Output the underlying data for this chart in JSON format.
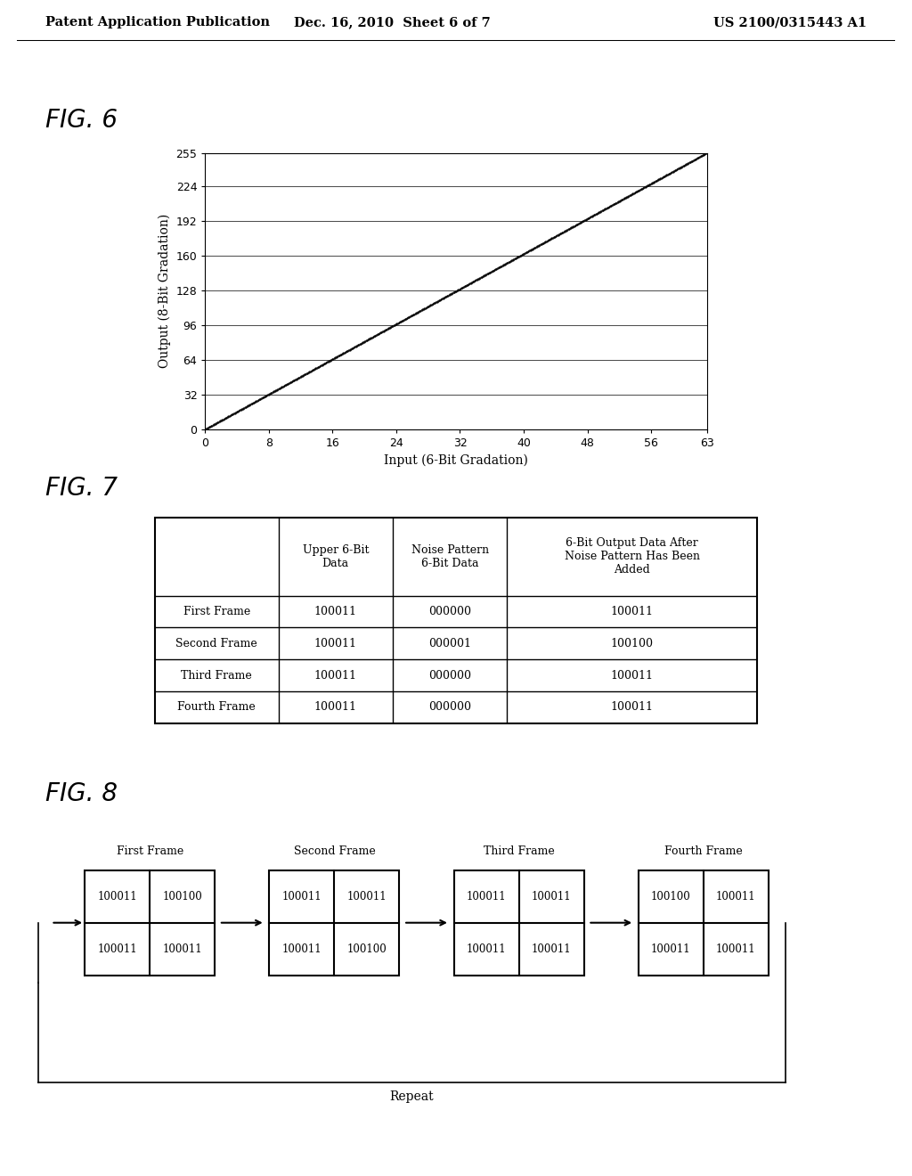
{
  "header_left": "Patent Application Publication",
  "header_middle": "Dec. 16, 2010  Sheet 6 of 7",
  "header_right": "US 2100/0315443 A1",
  "fig6_title": "FIG. 6",
  "fig6_xlabel": "Input (6-Bit Gradation)",
  "fig6_ylabel": "Output (8-Bit Gradation)",
  "fig6_xticks": [
    0,
    8,
    16,
    24,
    32,
    40,
    48,
    56,
    63
  ],
  "fig6_yticks": [
    0,
    32,
    64,
    96,
    128,
    160,
    192,
    224,
    255
  ],
  "fig6_xlim": [
    0,
    63
  ],
  "fig6_ylim": [
    0,
    255
  ],
  "fig7_title": "FIG. 7",
  "fig7_col_headers": [
    "",
    "Upper 6-Bit\nData",
    "Noise Pattern\n6-Bit Data",
    "6-Bit Output Data After\nNoise Pattern Has Been\nAdded"
  ],
  "fig7_rows": [
    [
      "First Frame",
      "100011",
      "000000",
      "100011"
    ],
    [
      "Second Frame",
      "100011",
      "000001",
      "100100"
    ],
    [
      "Third Frame",
      "100011",
      "000000",
      "100011"
    ],
    [
      "Fourth Frame",
      "100011",
      "000000",
      "100011"
    ]
  ],
  "fig8_title": "FIG. 8",
  "fig8_frames": [
    {
      "label": "First Frame",
      "cells": [
        [
          "100011",
          "100100"
        ],
        [
          "100011",
          "100011"
        ]
      ]
    },
    {
      "label": "Second Frame",
      "cells": [
        [
          "100011",
          "100011"
        ],
        [
          "100011",
          "100100"
        ]
      ]
    },
    {
      "label": "Third Frame",
      "cells": [
        [
          "100011",
          "100011"
        ],
        [
          "100011",
          "100011"
        ]
      ]
    },
    {
      "label": "Fourth Frame",
      "cells": [
        [
          "100100",
          "100011"
        ],
        [
          "100011",
          "100011"
        ]
      ]
    }
  ],
  "fig8_repeat_label": "Repeat",
  "background_color": "#ffffff",
  "text_color": "#000000"
}
